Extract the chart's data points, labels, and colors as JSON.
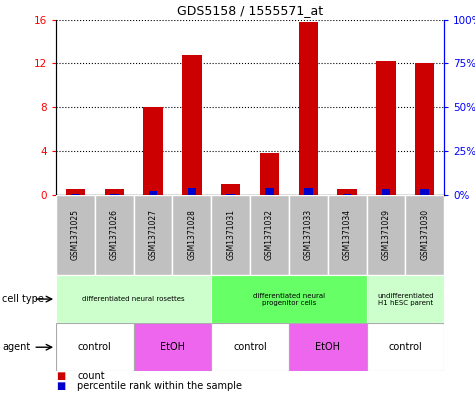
{
  "title": "GDS5158 / 1555571_at",
  "samples": [
    "GSM1371025",
    "GSM1371026",
    "GSM1371027",
    "GSM1371028",
    "GSM1371031",
    "GSM1371032",
    "GSM1371033",
    "GSM1371034",
    "GSM1371029",
    "GSM1371030"
  ],
  "count_values": [
    0.5,
    0.5,
    8.0,
    12.8,
    1.0,
    3.8,
    15.8,
    0.5,
    12.2,
    12.0
  ],
  "percentile_values": [
    0.5,
    0.5,
    2.0,
    3.5,
    0.5,
    3.5,
    3.5,
    0.5,
    3.2,
    3.2
  ],
  "ylim_left": [
    0,
    16
  ],
  "ylim_right": [
    0,
    100
  ],
  "yticks_left": [
    0,
    4,
    8,
    12,
    16
  ],
  "ytick_labels_left": [
    "0",
    "4",
    "8",
    "12",
    "16"
  ],
  "yticks_right": [
    0,
    25,
    50,
    75,
    100
  ],
  "ytick_labels_right": [
    "0%",
    "25%",
    "50%",
    "75%",
    "100%"
  ],
  "bar_color": "#cc0000",
  "percentile_color": "#0000cc",
  "cell_type_groups": [
    {
      "label": "differentiated neural rosettes",
      "start": 0,
      "end": 3,
      "color": "#ccffcc"
    },
    {
      "label": "differentiated neural\nprogenitor cells",
      "start": 4,
      "end": 7,
      "color": "#66ff66"
    },
    {
      "label": "undifferentiated\nH1 hESC parent",
      "start": 8,
      "end": 9,
      "color": "#ccffcc"
    }
  ],
  "agent_groups": [
    {
      "label": "control",
      "start": 0,
      "end": 1,
      "color": "#ffffff"
    },
    {
      "label": "EtOH",
      "start": 2,
      "end": 3,
      "color": "#ee66ee"
    },
    {
      "label": "control",
      "start": 4,
      "end": 5,
      "color": "#ffffff"
    },
    {
      "label": "EtOH",
      "start": 6,
      "end": 7,
      "color": "#ee66ee"
    },
    {
      "label": "control",
      "start": 8,
      "end": 9,
      "color": "#ffffff"
    }
  ],
  "cell_type_label": "cell type",
  "agent_label": "agent",
  "legend_count": "count",
  "legend_percentile": "percentile rank within the sample",
  "bg_color_sample": "#c0c0c0",
  "bar_width": 0.5
}
